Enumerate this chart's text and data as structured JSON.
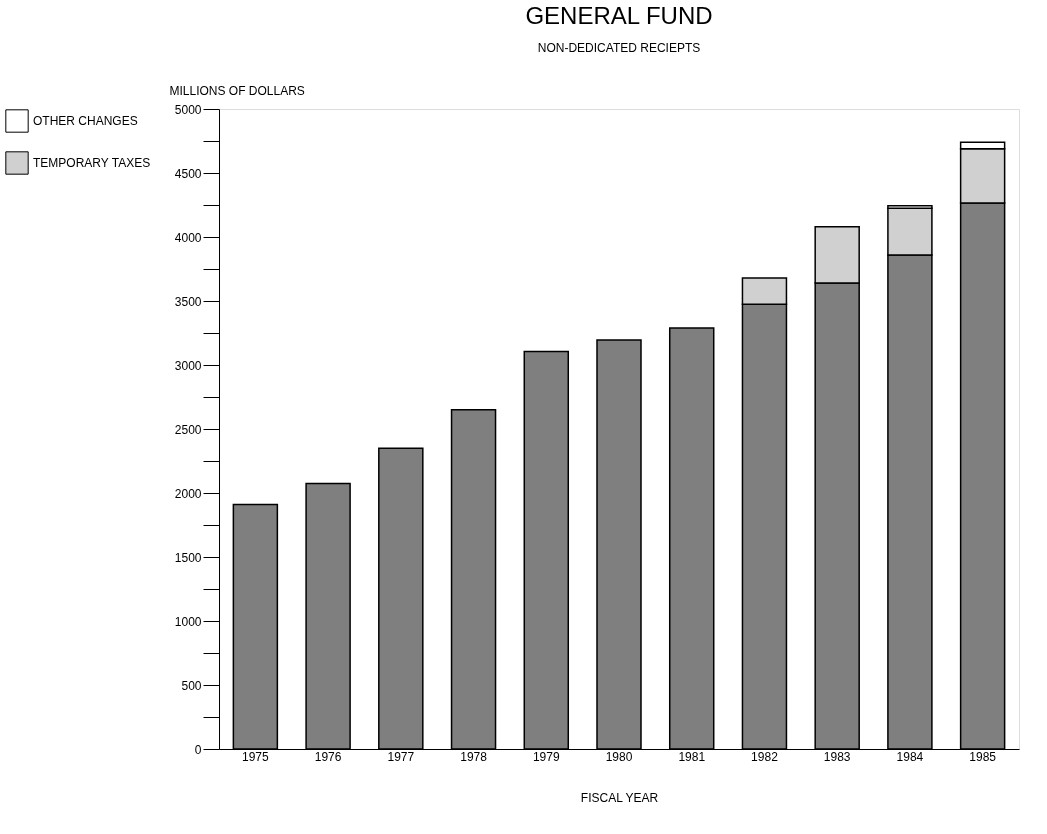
{
  "chart_data": {
    "type": "bar",
    "title": "GENERAL FUND",
    "subtitle": "NON-DEDICATED RECIEPTS",
    "ylabel": "MILLIONS OF DOLLARS",
    "xlabel": "FISCAL YEAR",
    "categories": [
      "1975",
      "1976",
      "1977",
      "1978",
      "1979",
      "1980",
      "1981",
      "1982",
      "1983",
      "1984",
      "1985"
    ],
    "stacked": true,
    "series": [
      {
        "color": "#7f7f7f",
        "values": [
          1910,
          2075,
          2350,
          2650,
          3105,
          3195,
          3290,
          3475,
          3640,
          3860,
          4265
        ]
      },
      {
        "name": "TEMPORARY TAXES",
        "color": "#d0d0d0",
        "values": [
          null,
          null,
          null,
          null,
          null,
          null,
          null,
          205,
          440,
          365,
          425
        ]
      },
      {
        "name": "OTHER CHANGES",
        "color": "#ffffff",
        "values": [
          null,
          null,
          null,
          null,
          null,
          null,
          null,
          null,
          null,
          20,
          50
        ]
      }
    ],
    "ylim": [
      0,
      5000
    ],
    "yticks": [
      0,
      {
        "value": 250,
        "label": null
      },
      500,
      {
        "value": 750,
        "label": null
      },
      1000,
      {
        "value": 1250,
        "label": null
      },
      1500,
      {
        "value": 1750,
        "label": null
      },
      2000,
      {
        "value": 2250,
        "label": null
      },
      2500,
      {
        "value": 2750,
        "label": null
      },
      3000,
      {
        "value": 3250,
        "label": null
      },
      3500,
      {
        "value": 3750,
        "label": null
      },
      4000,
      {
        "value": 4250,
        "label": null
      },
      4500,
      {
        "value": 4750,
        "label": null
      },
      5000
    ],
    "grid": false,
    "legend": "left"
  }
}
